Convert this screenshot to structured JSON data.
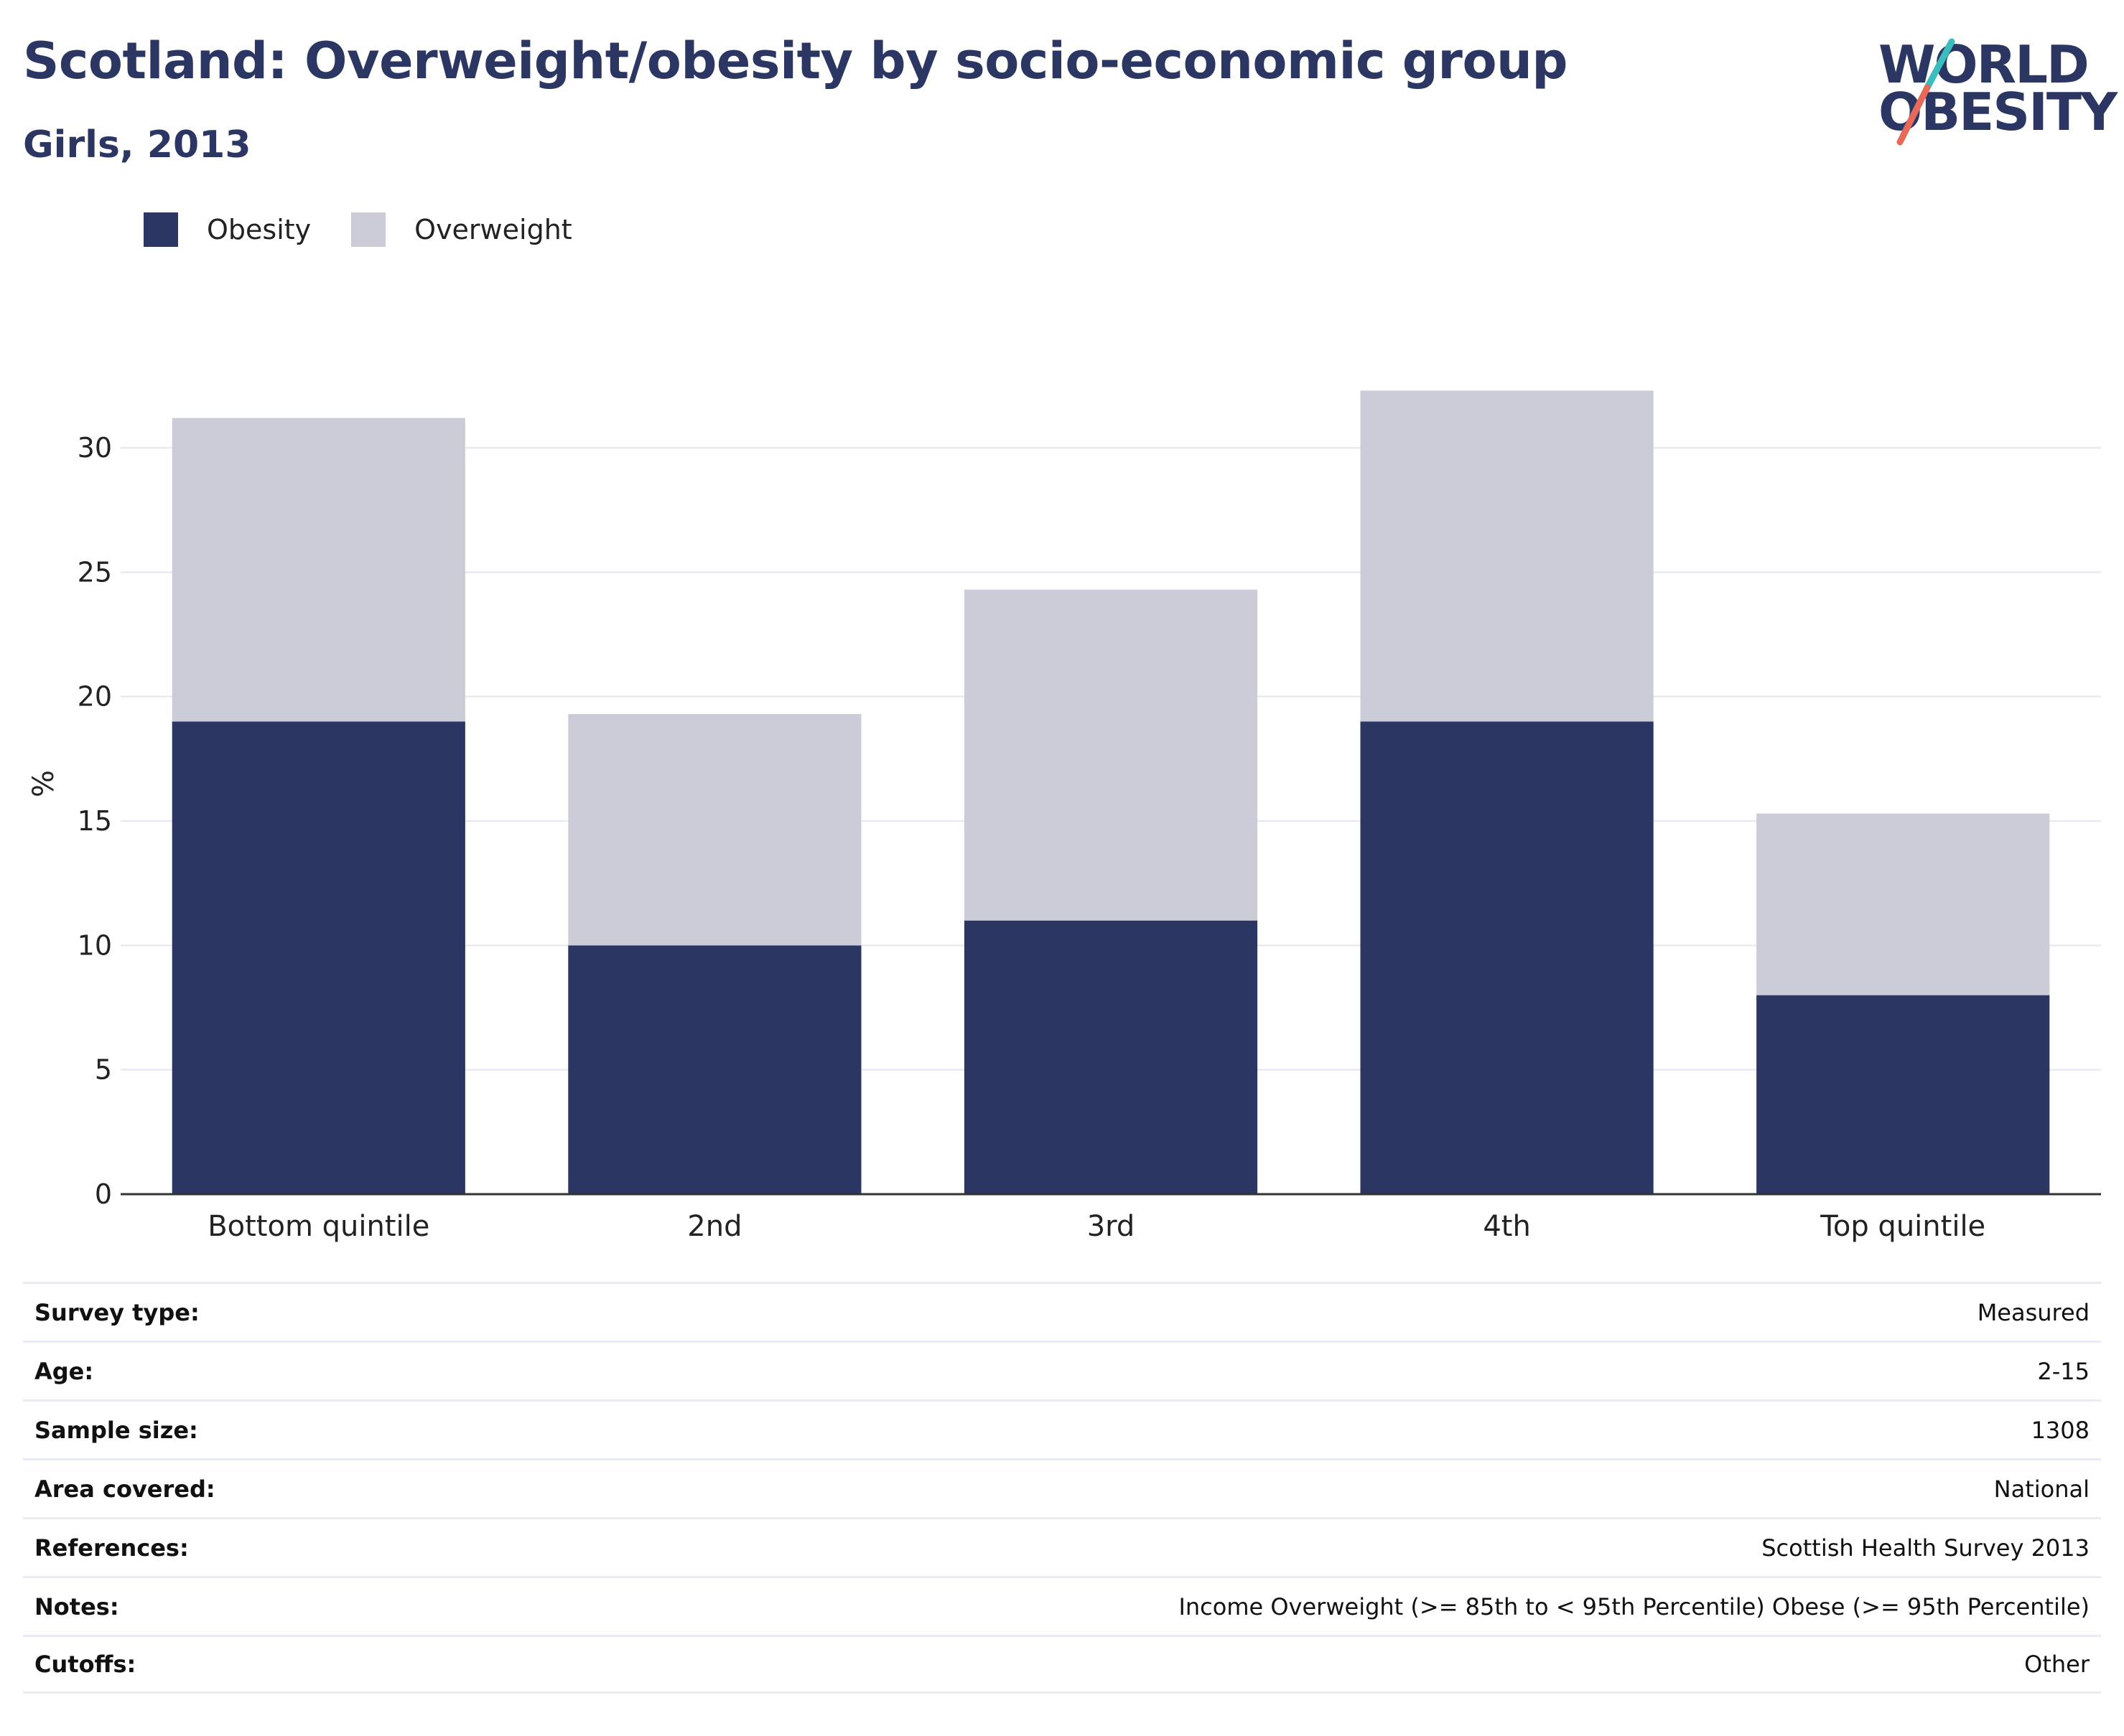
{
  "header": {
    "title": "Scotland: Overweight/obesity by socio-economic group",
    "subtitle": "Girls, 2013"
  },
  "logo": {
    "line1": "WORLD",
    "line2": "OBESITY",
    "icon": "world-obesity-logo"
  },
  "colors": {
    "obesity": "#2b3663",
    "overweight": "#cbccd8",
    "title": "#2b3663",
    "grid": "#e8ebf3",
    "axis": "#333333"
  },
  "chart_data": {
    "type": "bar",
    "stacked": true,
    "categories": [
      "Bottom quintile",
      "2nd",
      "3rd",
      "4th",
      "Top quintile"
    ],
    "series": [
      {
        "name": "Obesity",
        "values": [
          19,
          10,
          11,
          19,
          8
        ]
      },
      {
        "name": "Overweight",
        "values": [
          12.2,
          9.3,
          13.3,
          13.3,
          7.3
        ]
      }
    ],
    "ylabel": "%",
    "xlabel": "",
    "ylim": [
      0,
      33
    ],
    "yticks": [
      0,
      5,
      10,
      15,
      20,
      25,
      30
    ],
    "grid": true,
    "legend": "top-left"
  },
  "meta": [
    {
      "label": "Survey type:",
      "value": "Measured"
    },
    {
      "label": "Age:",
      "value": "2-15"
    },
    {
      "label": "Sample size:",
      "value": "1308"
    },
    {
      "label": "Area covered:",
      "value": "National"
    },
    {
      "label": "References:",
      "value": "Scottish Health Survey 2013"
    },
    {
      "label": "Notes:",
      "value": "Income Overweight (>= 85th to < 95th Percentile) Obese (>= 95th Percentile)"
    },
    {
      "label": "Cutoffs:",
      "value": "Other"
    }
  ]
}
